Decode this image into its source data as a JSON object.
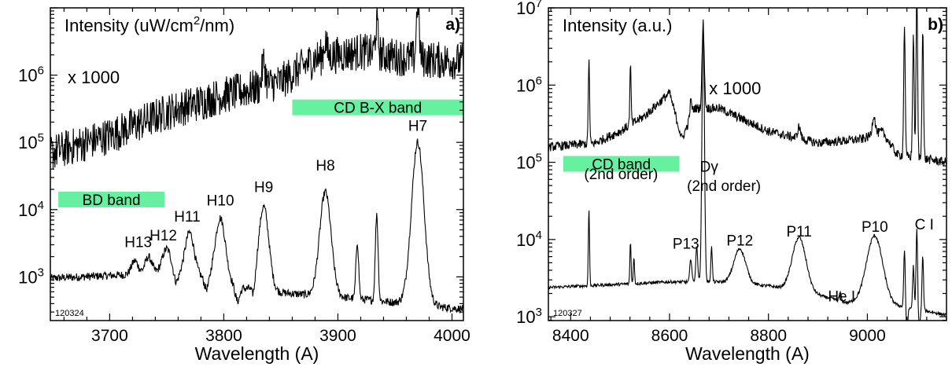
{
  "chart_data": [
    {
      "id": "a",
      "type": "line",
      "panel_label": "a)",
      "ylabel_text": "Intensity (uW/cm",
      "ylabel_sup": "2",
      "ylabel_tail": "/nm)",
      "xlabel": "Wavelength (A)",
      "xlim": [
        3648,
        4010
      ],
      "ylim_log10": [
        2.35,
        7.0
      ],
      "y_scale": "log",
      "x_ticks": [
        3700,
        3800,
        3900,
        4000
      ],
      "x_tick_labels": [
        "3700",
        "3800",
        "3900",
        "4000"
      ],
      "y_ticks_log10": [
        3,
        4,
        5,
        6
      ],
      "y_tick_base": "10",
      "y_tick_exps": [
        "3",
        "4",
        "5",
        "6"
      ],
      "scale_note": "x 1000",
      "id_code": "120324",
      "bands": [
        {
          "label": "BD band",
          "x": [
            3655,
            3748
          ],
          "y_log10": 4.15
        },
        {
          "label": "CD B-X band",
          "x": [
            3860,
            4010
          ],
          "y_log10": 5.52
        }
      ],
      "annotations": [
        {
          "text": "H13",
          "x": 3725,
          "y_log10": 3.44
        },
        {
          "text": "H12",
          "x": 3747,
          "y_log10": 3.54
        },
        {
          "text": "H11",
          "x": 3768,
          "y_log10": 3.82
        },
        {
          "text": "H10",
          "x": 3797,
          "y_log10": 4.06
        },
        {
          "text": "H9",
          "x": 3835,
          "y_log10": 4.26
        },
        {
          "text": "H8",
          "x": 3889,
          "y_log10": 4.58
        },
        {
          "text": "H7",
          "x": 3970,
          "y_log10": 5.17
        }
      ],
      "series": [
        {
          "role": "main",
          "baseline": [
            [
              3650,
              2.98
            ],
            [
              3700,
              3.02
            ],
            [
              3740,
              3.05
            ],
            [
              3780,
              3.0
            ],
            [
              3820,
              2.82
            ],
            [
              3860,
              2.75
            ],
            [
              3900,
              2.7
            ],
            [
              3950,
              2.62
            ],
            [
              3990,
              2.55
            ],
            [
              4010,
              2.52
            ]
          ],
          "noise": 0.06,
          "peaks": [
            {
              "x": 3722,
              "h": 0.2,
              "w": 3.0
            },
            {
              "x": 3734,
              "h": 0.25,
              "w": 3.0
            },
            {
              "x": 3750,
              "h": 0.38,
              "w": 4.0
            },
            {
              "x": 3770,
              "h": 0.65,
              "w": 4.0
            },
            {
              "x": 3797,
              "h": 0.95,
              "w": 4.5
            },
            {
              "x": 3835,
              "h": 1.25,
              "w": 4.5
            },
            {
              "x": 3889,
              "h": 1.55,
              "w": 5.0
            },
            {
              "x": 3917,
              "h": 0.85,
              "w": 1.2
            },
            {
              "x": 3934,
              "h": 1.3,
              "w": 1.2
            },
            {
              "x": 3970,
              "h": 2.42,
              "w": 5.5
            }
          ],
          "dips": [
            {
              "x": 3758,
              "d": 0.15,
              "w": 2.0
            },
            {
              "x": 3785,
              "d": 0.18,
              "w": 2.0
            },
            {
              "x": 3812,
              "d": 0.22,
              "w": 2.0
            },
            {
              "x": 3826,
              "d": 0.2,
              "w": 1.5
            }
          ]
        },
        {
          "role": "scaled",
          "baseline": [
            [
              3650,
              4.85
            ],
            [
              3700,
              5.1
            ],
            [
              3750,
              5.45
            ],
            [
              3800,
              5.7
            ],
            [
              3850,
              5.9
            ],
            [
              3880,
              6.25
            ],
            [
              3920,
              6.35
            ],
            [
              3960,
              6.25
            ],
            [
              4010,
              6.2
            ]
          ],
          "noise": 0.28,
          "peaks": [
            {
              "x": 3835,
              "h": 0.35,
              "w": 1.5
            },
            {
              "x": 3889,
              "h": 0.25,
              "w": 1.2
            },
            {
              "x": 3934,
              "h": 0.45,
              "w": 1.2
            },
            {
              "x": 3970,
              "h": 0.85,
              "w": 1.2
            }
          ],
          "dips": []
        }
      ]
    },
    {
      "id": "b",
      "type": "line",
      "panel_label": "b)",
      "ylabel_text": "Intensity (a.u.)",
      "xlabel": "Wavelength (A)",
      "xlim": [
        8355,
        9160
      ],
      "ylim_log10": [
        2.95,
        7.0
      ],
      "y_scale": "log",
      "x_ticks": [
        8400,
        8600,
        8800,
        9000
      ],
      "x_tick_labels": [
        "8400",
        "8600",
        "8800",
        "9000"
      ],
      "y_ticks_log10": [
        3,
        4,
        5,
        6,
        7
      ],
      "y_tick_base": "10",
      "y_tick_exps": [
        "3",
        "4",
        "5",
        "6",
        "7"
      ],
      "scale_note": "x 1000",
      "id_code": "120327",
      "bands": [
        {
          "label": "CD band",
          "x": [
            8385,
            8620
          ],
          "y_log10": 4.98
        }
      ],
      "annotations": [
        {
          "text": "(2nd order)",
          "x": 8502,
          "y_log10": 4.78
        },
        {
          "text": "Dγ",
          "x": 8680,
          "y_log10": 4.88
        },
        {
          "text": "(2nd order)",
          "x": 8710,
          "y_log10": 4.63
        },
        {
          "text": "P13",
          "x": 8633,
          "y_log10": 3.88
        },
        {
          "text": "P12",
          "x": 8742,
          "y_log10": 3.92
        },
        {
          "text": "P11",
          "x": 8862,
          "y_log10": 4.04
        },
        {
          "text": "He I",
          "x": 8948,
          "y_log10": 3.2
        },
        {
          "text": "P10",
          "x": 9015,
          "y_log10": 4.1
        },
        {
          "text": "C I",
          "x": 9115,
          "y_log10": 4.13
        }
      ],
      "series": [
        {
          "role": "main",
          "baseline": [
            [
              8360,
              3.38
            ],
            [
              8500,
              3.42
            ],
            [
              8600,
              3.45
            ],
            [
              8700,
              3.45
            ],
            [
              8800,
              3.4
            ],
            [
              8900,
              3.28
            ],
            [
              8960,
              3.18
            ],
            [
              9000,
              3.22
            ],
            [
              9050,
              3.15
            ],
            [
              9100,
              3.1
            ],
            [
              9160,
              3.02
            ]
          ],
          "noise": 0.02,
          "peaks": [
            {
              "x": 8437,
              "h": 1.0,
              "w": 1.2
            },
            {
              "x": 8521,
              "h": 0.55,
              "w": 1.2
            },
            {
              "x": 8528,
              "h": 0.35,
              "w": 1.2
            },
            {
              "x": 8643,
              "h": 0.3,
              "w": 2.0
            },
            {
              "x": 8655,
              "h": 0.45,
              "w": 2.0
            },
            {
              "x": 8668,
              "h": 3.35,
              "w": 2.5
            },
            {
              "x": 8685,
              "h": 0.45,
              "w": 1.5
            },
            {
              "x": 8742,
              "h": 0.45,
              "w": 12
            },
            {
              "x": 8862,
              "h": 0.7,
              "w": 14
            },
            {
              "x": 8945,
              "h": 0.1,
              "w": 2.0
            },
            {
              "x": 9015,
              "h": 0.85,
              "w": 16
            },
            {
              "x": 9075,
              "h": 0.75,
              "w": 1.5
            },
            {
              "x": 9093,
              "h": 0.55,
              "w": 1.5
            },
            {
              "x": 9100,
              "h": 1.05,
              "w": 1.5
            },
            {
              "x": 9112,
              "h": 0.7,
              "w": 1.5
            }
          ],
          "dips": [
            {
              "x": 9080,
              "d": 0.25,
              "w": 2.0
            },
            {
              "x": 9105,
              "d": 0.2,
              "w": 2.0
            }
          ]
        },
        {
          "role": "scaled",
          "baseline": [
            [
              8360,
              5.2
            ],
            [
              8450,
              5.25
            ],
            [
              8500,
              5.4
            ],
            [
              8550,
              5.6
            ],
            [
              8600,
              5.9
            ],
            [
              8625,
              5.3
            ],
            [
              8650,
              5.7
            ],
            [
              8700,
              5.7
            ],
            [
              8800,
              5.4
            ],
            [
              8900,
              5.25
            ],
            [
              8990,
              5.3
            ],
            [
              9030,
              5.4
            ],
            [
              9060,
              5.1
            ],
            [
              9160,
              5.0
            ]
          ],
          "noise": 0.06,
          "peaks": [
            {
              "x": 8437,
              "h": 1.1,
              "w": 1.3
            },
            {
              "x": 8521,
              "h": 0.75,
              "w": 1.3
            },
            {
              "x": 8643,
              "h": 0.2,
              "w": 2.0
            },
            {
              "x": 8668,
              "h": 1.1,
              "w": 2.2
            },
            {
              "x": 8862,
              "h": 0.15,
              "w": 3.0
            },
            {
              "x": 9013,
              "h": 0.25,
              "w": 3.0
            },
            {
              "x": 9075,
              "h": 1.7,
              "w": 1.5
            },
            {
              "x": 9093,
              "h": 1.6,
              "w": 1.5
            },
            {
              "x": 9100,
              "h": 2.2,
              "w": 1.5
            },
            {
              "x": 9112,
              "h": 1.7,
              "w": 1.5
            }
          ],
          "dips": []
        }
      ]
    }
  ]
}
